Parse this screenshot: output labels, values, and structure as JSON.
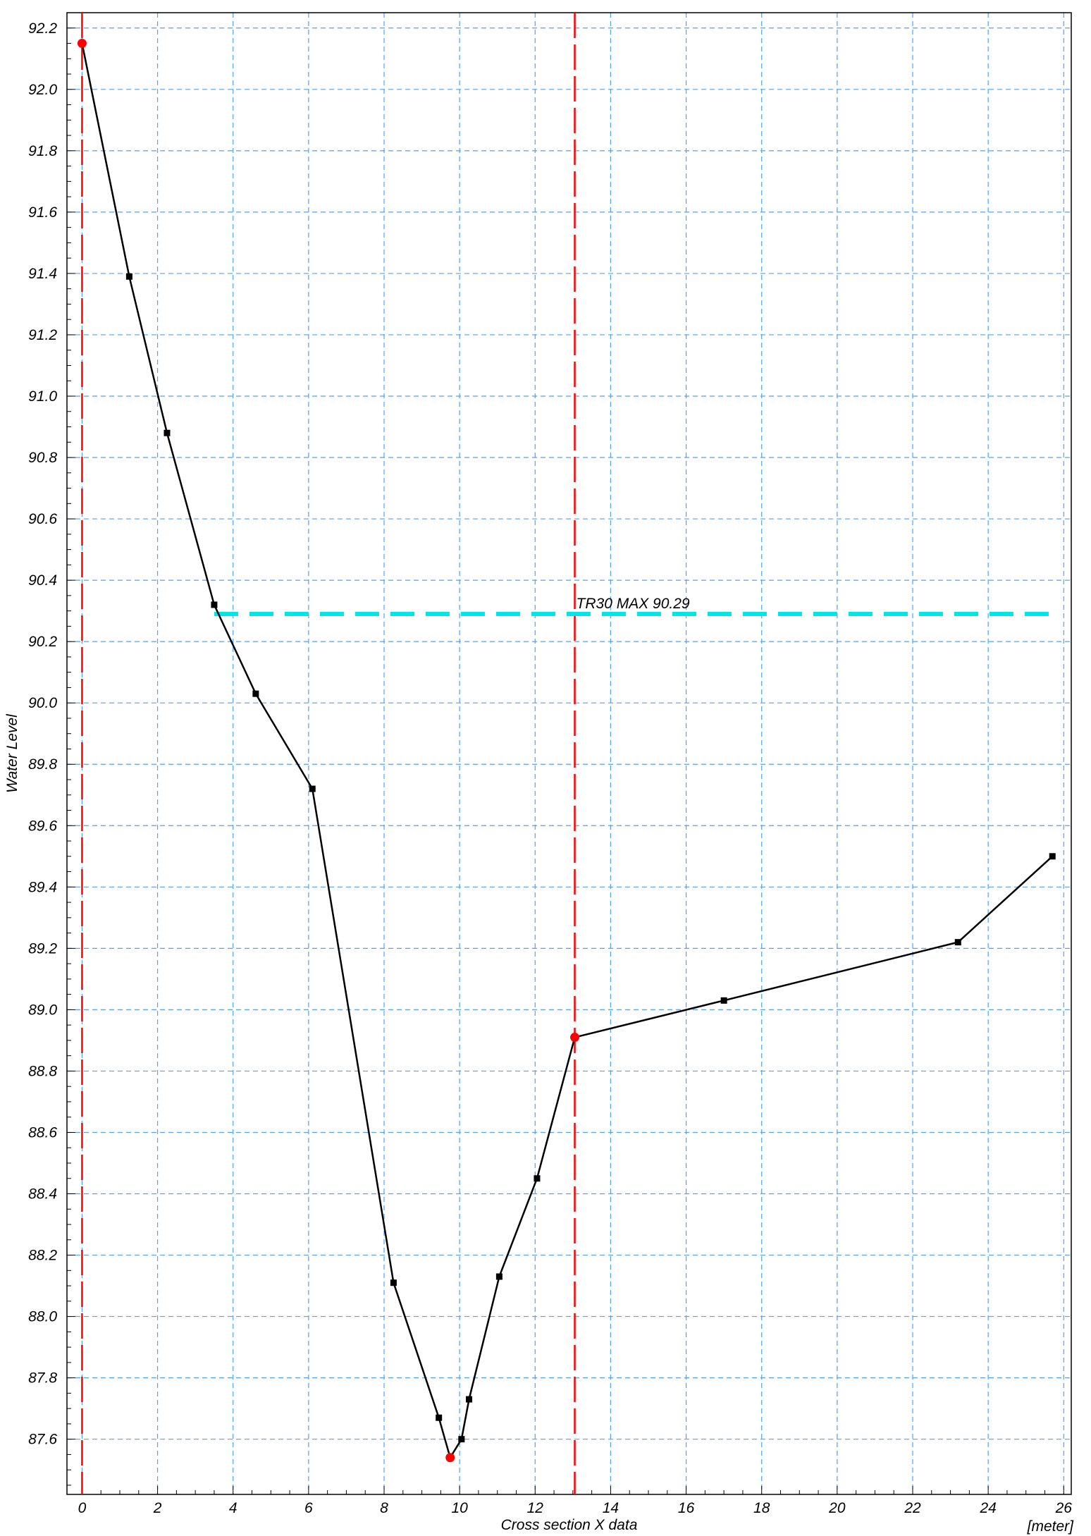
{
  "chart_data": {
    "type": "line",
    "title": "",
    "xlabel": "Cross section X data",
    "xunit": "[meter]",
    "ylabel": "Water Level",
    "xlim": [
      -0.4,
      26.2
    ],
    "ylim": [
      87.42,
      92.25
    ],
    "x_ticks": [
      0,
      2,
      4,
      6,
      8,
      10,
      12,
      14,
      16,
      18,
      20,
      22,
      24,
      26
    ],
    "y_ticks": [
      87.6,
      87.8,
      88.0,
      88.2,
      88.4,
      88.6,
      88.8,
      89.0,
      89.2,
      89.4,
      89.6,
      89.8,
      90.0,
      90.2,
      90.4,
      90.6,
      90.8,
      91.0,
      91.2,
      91.4,
      91.6,
      91.8,
      92.0,
      92.2
    ],
    "grid": true,
    "series": [
      {
        "color": "#000000",
        "x": [
          0,
          1.25,
          2.25,
          3.5,
          4.6,
          6.1,
          8.25,
          9.45,
          9.75,
          10.05,
          10.25,
          11.05,
          12.05,
          13.05,
          17.0,
          23.2,
          25.7
        ],
        "y": [
          92.15,
          91.39,
          90.88,
          90.32,
          90.03,
          89.72,
          88.11,
          87.67,
          87.54,
          87.6,
          87.73,
          88.13,
          88.45,
          88.91,
          89.03,
          89.22,
          89.5
        ]
      }
    ],
    "markers": {
      "color": "#ff0000",
      "x": [
        0,
        9.75,
        13.05
      ],
      "y": [
        92.15,
        87.54,
        88.91
      ]
    },
    "vertical_lines": {
      "color": "#ff0000",
      "x": [
        0,
        13.05
      ]
    },
    "water_level": {
      "label": "TR30 MAX  90.29",
      "value": 90.29,
      "x_start": 3.5,
      "x_end": 25.7,
      "color": "#00e5e5"
    },
    "grid_color": "#4aa3ff"
  }
}
